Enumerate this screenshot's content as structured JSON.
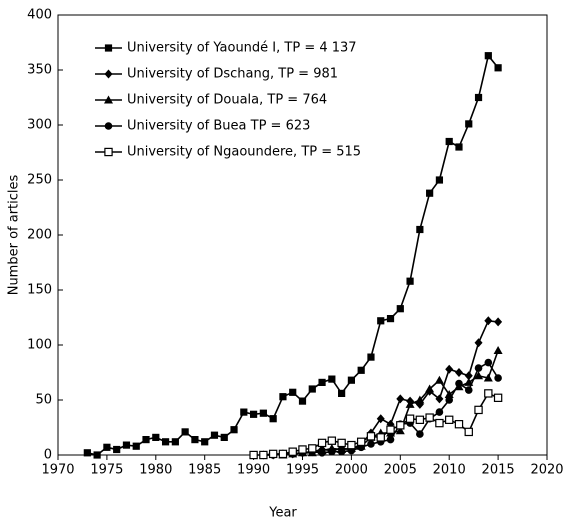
{
  "chart_data": {
    "type": "line",
    "xlabel": "Year",
    "ylabel": "Number of articles",
    "x": [
      1973,
      1974,
      1975,
      1976,
      1977,
      1978,
      1979,
      1980,
      1981,
      1982,
      1983,
      1984,
      1985,
      1986,
      1987,
      1988,
      1989,
      1990,
      1991,
      1992,
      1993,
      1994,
      1995,
      1996,
      1997,
      1998,
      1999,
      2000,
      2001,
      2002,
      2003,
      2004,
      2005,
      2006,
      2007,
      2008,
      2009,
      2010,
      2011,
      2012,
      2013,
      2014,
      2015
    ],
    "xlim": [
      1970,
      2020
    ],
    "xticks": [
      1970,
      1975,
      1980,
      1985,
      1990,
      1995,
      2000,
      2005,
      2010,
      2015,
      2020
    ],
    "ylim": [
      0,
      400
    ],
    "yticks": [
      0,
      50,
      100,
      150,
      200,
      250,
      300,
      350,
      400
    ],
    "grid": false,
    "legend": "upper left",
    "series": [
      {
        "name": "University of Yaoundé I, TP = 4 137",
        "color": "#000000",
        "marker": "square",
        "values": [
          2,
          0,
          7,
          5,
          9,
          8,
          14,
          16,
          12,
          12,
          21,
          14,
          12,
          18,
          16,
          23,
          39,
          37,
          38,
          33,
          53,
          57,
          49,
          60,
          66,
          69,
          56,
          68,
          77,
          89,
          122,
          124,
          133,
          158,
          205,
          238,
          250,
          285,
          280,
          301,
          325,
          363,
          352
        ]
      },
      {
        "name": "University of Dschang, TP = 981",
        "color": "#000000",
        "marker": "diamond",
        "values": [
          null,
          null,
          null,
          null,
          null,
          null,
          null,
          null,
          null,
          null,
          null,
          null,
          null,
          null,
          null,
          null,
          null,
          null,
          0,
          0,
          1,
          1,
          2,
          3,
          5,
          4,
          6,
          5,
          10,
          20,
          33,
          28,
          51,
          49,
          46,
          58,
          51,
          78,
          75,
          72,
          102,
          122,
          121
        ]
      },
      {
        "name": "University of Douala, TP = 764",
        "color": "#000000",
        "marker": "triangle",
        "values": [
          null,
          null,
          null,
          null,
          null,
          null,
          null,
          null,
          null,
          null,
          null,
          null,
          null,
          null,
          null,
          null,
          null,
          null,
          null,
          null,
          0,
          1,
          2,
          2,
          4,
          6,
          5,
          6,
          8,
          16,
          20,
          20,
          22,
          46,
          50,
          60,
          68,
          55,
          62,
          66,
          72,
          70,
          95
        ]
      },
      {
        "name": "University of Buea TP = 623",
        "color": "#000000",
        "marker": "circle",
        "values": [
          null,
          null,
          null,
          null,
          null,
          null,
          null,
          null,
          null,
          null,
          null,
          null,
          null,
          null,
          null,
          null,
          null,
          null,
          0,
          0,
          1,
          1,
          2,
          3,
          2,
          3,
          3,
          4,
          7,
          10,
          12,
          14,
          28,
          29,
          19,
          33,
          39,
          50,
          65,
          59,
          79,
          84,
          70
        ]
      },
      {
        "name": "University of Ngaoundere, TP = 515",
        "color": "#000000",
        "marker": "square-open",
        "values": [
          null,
          null,
          null,
          null,
          null,
          null,
          null,
          null,
          null,
          null,
          null,
          null,
          null,
          null,
          null,
          null,
          null,
          0,
          0,
          1,
          1,
          3,
          5,
          6,
          11,
          13,
          11,
          9,
          12,
          17,
          16,
          23,
          27,
          33,
          32,
          34,
          29,
          32,
          28,
          21,
          41,
          56,
          52
        ]
      }
    ]
  }
}
